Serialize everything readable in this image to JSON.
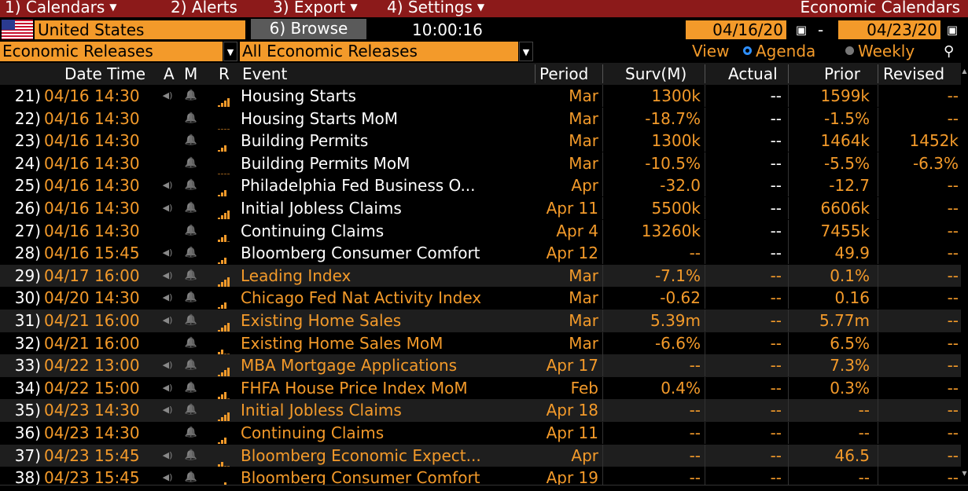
{
  "menu": {
    "items": [
      {
        "label": "1) Calendars",
        "has_dropdown": true
      },
      {
        "label": "2) Alerts",
        "has_dropdown": false
      },
      {
        "label": "3) Export",
        "has_dropdown": true
      },
      {
        "label": "4) Settings",
        "has_dropdown": true
      }
    ],
    "title": "Economic Calendars"
  },
  "toolbar": {
    "country": "United States",
    "browse_label": "6) Browse",
    "time": "10:00:16",
    "date_from": "04/16/20",
    "date_separator": "-",
    "date_to": "04/23/20"
  },
  "filters": {
    "release_type": "Economic Releases",
    "release_filter": "All Economic Releases",
    "view_label": "View",
    "view_options": [
      "Agenda",
      "Weekly"
    ],
    "view_selected": "Agenda"
  },
  "table": {
    "columns": [
      "Date Time",
      "A",
      "M",
      "R",
      "Event",
      "Period",
      "Surv(M)",
      "Actual",
      "Prior",
      "Revised"
    ],
    "rows": [
      {
        "num": "21)",
        "dt": "04/16 14:30",
        "a": true,
        "r": 4,
        "event": "Housing Starts",
        "period": "Mar",
        "surv": "1300k",
        "actual": "--",
        "prior": "1599k",
        "revised": "--",
        "status": "past"
      },
      {
        "num": "22)",
        "dt": "04/16 14:30",
        "a": false,
        "r": 0,
        "event": "Housing Starts MoM",
        "period": "Mar",
        "surv": "-18.7%",
        "actual": "--",
        "prior": "-1.5%",
        "revised": "--",
        "status": "past"
      },
      {
        "num": "23)",
        "dt": "04/16 14:30",
        "a": false,
        "r": 3,
        "event": "Building Permits",
        "period": "Mar",
        "surv": "1300k",
        "actual": "--",
        "prior": "1464k",
        "revised": "1452k",
        "status": "past"
      },
      {
        "num": "24)",
        "dt": "04/16 14:30",
        "a": false,
        "r": 0,
        "event": "Building Permits MoM",
        "period": "Mar",
        "surv": "-10.5%",
        "actual": "--",
        "prior": "-5.5%",
        "revised": "-6.3%",
        "status": "past"
      },
      {
        "num": "25)",
        "dt": "04/16 14:30",
        "a": true,
        "r": 3,
        "event": "Philadelphia Fed Business O...",
        "period": "Apr",
        "surv": "-32.0",
        "actual": "--",
        "prior": "-12.7",
        "revised": "--",
        "status": "past"
      },
      {
        "num": "26)",
        "dt": "04/16 14:30",
        "a": true,
        "r": 4,
        "event": "Initial Jobless Claims",
        "period": "Apr 11",
        "surv": "5500k",
        "actual": "--",
        "prior": "6606k",
        "revised": "--",
        "status": "past"
      },
      {
        "num": "27)",
        "dt": "04/16 14:30",
        "a": false,
        "r": 3,
        "event": "Continuing Claims",
        "period": "Apr 4",
        "surv": "13260k",
        "actual": "--",
        "prior": "7455k",
        "revised": "--",
        "status": "past"
      },
      {
        "num": "28)",
        "dt": "04/16 15:45",
        "a": true,
        "r": 3,
        "event": "Bloomberg Consumer Comfort",
        "period": "Apr 12",
        "surv": "--",
        "actual": "--",
        "prior": "49.9",
        "revised": "--",
        "status": "past"
      },
      {
        "num": "29)",
        "dt": "04/17 16:00",
        "a": true,
        "r": 4,
        "event": "Leading Index",
        "period": "Mar",
        "surv": "-7.1%",
        "actual": "--",
        "prior": "0.1%",
        "revised": "--",
        "status": "future"
      },
      {
        "num": "30)",
        "dt": "04/20 14:30",
        "a": true,
        "r": 3,
        "event": "Chicago Fed Nat Activity Index",
        "period": "Mar",
        "surv": "-0.62",
        "actual": "--",
        "prior": "0.16",
        "revised": "--",
        "status": "future"
      },
      {
        "num": "31)",
        "dt": "04/21 16:00",
        "a": true,
        "r": 4,
        "event": "Existing Home Sales",
        "period": "Mar",
        "surv": "5.39m",
        "actual": "--",
        "prior": "5.77m",
        "revised": "--",
        "status": "future"
      },
      {
        "num": "32)",
        "dt": "04/21 16:00",
        "a": false,
        "r": 2,
        "event": "Existing Home Sales MoM",
        "period": "Mar",
        "surv": "-6.6%",
        "actual": "--",
        "prior": "6.5%",
        "revised": "--",
        "status": "future"
      },
      {
        "num": "33)",
        "dt": "04/22 13:00",
        "a": true,
        "r": 4,
        "event": "MBA Mortgage Applications",
        "period": "Apr 17",
        "surv": "--",
        "actual": "--",
        "prior": "7.3%",
        "revised": "--",
        "status": "future"
      },
      {
        "num": "34)",
        "dt": "04/22 15:00",
        "a": true,
        "r": 3,
        "event": "FHFA House Price Index MoM",
        "period": "Feb",
        "surv": "0.4%",
        "actual": "--",
        "prior": "0.3%",
        "revised": "--",
        "status": "future"
      },
      {
        "num": "35)",
        "dt": "04/23 14:30",
        "a": true,
        "r": 4,
        "event": "Initial Jobless Claims",
        "period": "Apr 18",
        "surv": "--",
        "actual": "--",
        "prior": "--",
        "revised": "--",
        "status": "future"
      },
      {
        "num": "36)",
        "dt": "04/23 14:30",
        "a": false,
        "r": 3,
        "event": "Continuing Claims",
        "period": "Apr 11",
        "surv": "--",
        "actual": "--",
        "prior": "--",
        "revised": "--",
        "status": "future"
      },
      {
        "num": "37)",
        "dt": "04/23 15:45",
        "a": true,
        "r": 2,
        "event": "Bloomberg Economic Expect...",
        "period": "Apr",
        "surv": "--",
        "actual": "--",
        "prior": "46.5",
        "revised": "--",
        "status": "future"
      },
      {
        "num": "38)",
        "dt": "04/23 15:45",
        "a": true,
        "r": 3,
        "event": "Bloomberg Consumer Comfort",
        "period": "Apr 19",
        "surv": "--",
        "actual": "--",
        "prior": "--",
        "revised": "--",
        "status": "future"
      }
    ]
  },
  "colors": {
    "accent": "#f39a2a",
    "menu_bg": "#8c1a1a",
    "button_bg": "#5a5a5a",
    "radio_selected": "#2e8fff"
  }
}
